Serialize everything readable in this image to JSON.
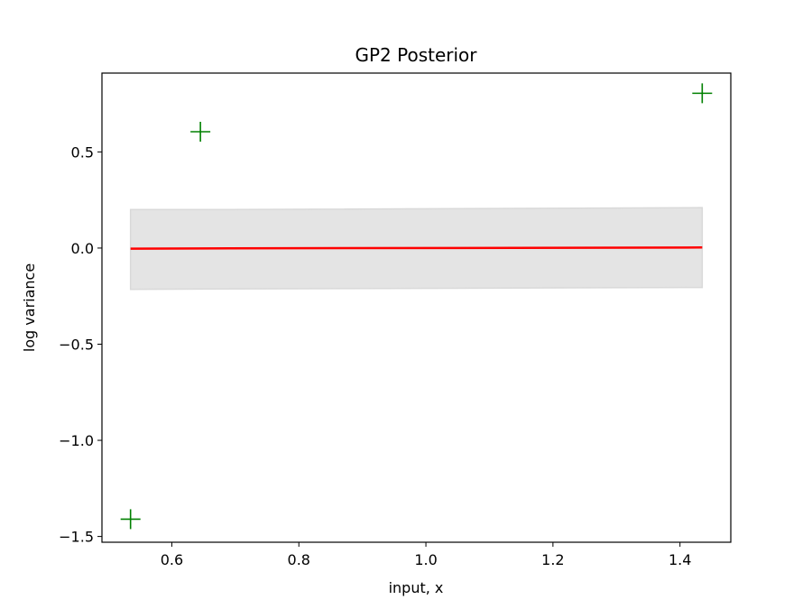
{
  "chart_data": {
    "type": "line",
    "title": "GP2 Posterior",
    "xlabel": "input, x",
    "ylabel": "log variance",
    "xlim": [
      0.49,
      1.48
    ],
    "ylim": [
      -1.53,
      0.91
    ],
    "grid": false,
    "x_ticks": [
      0.6,
      0.8,
      1.0,
      1.2,
      1.4
    ],
    "x_tick_labels": [
      "0.6",
      "0.8",
      "1.0",
      "1.2",
      "1.4"
    ],
    "y_ticks": [
      -1.5,
      -1.0,
      -0.5,
      0.0,
      0.5
    ],
    "y_tick_labels": [
      "−1.5",
      "−1.0",
      "−0.5",
      "0.0",
      "0.5"
    ],
    "mean": {
      "color": "#ff0000",
      "x": [
        0.535,
        0.645,
        1.435
      ],
      "y": [
        -0.003,
        -0.002,
        0.003
      ]
    },
    "confidence_band": {
      "color": "#d9d9d9",
      "x": [
        0.535,
        0.645,
        1.435
      ],
      "lower": [
        -0.215,
        -0.213,
        -0.205
      ],
      "upper": [
        0.2,
        0.2,
        0.21
      ]
    },
    "observations": {
      "marker": "+",
      "color": "#008000",
      "x": [
        0.535,
        0.645,
        1.435
      ],
      "y": [
        -1.41,
        0.605,
        0.805
      ]
    }
  }
}
